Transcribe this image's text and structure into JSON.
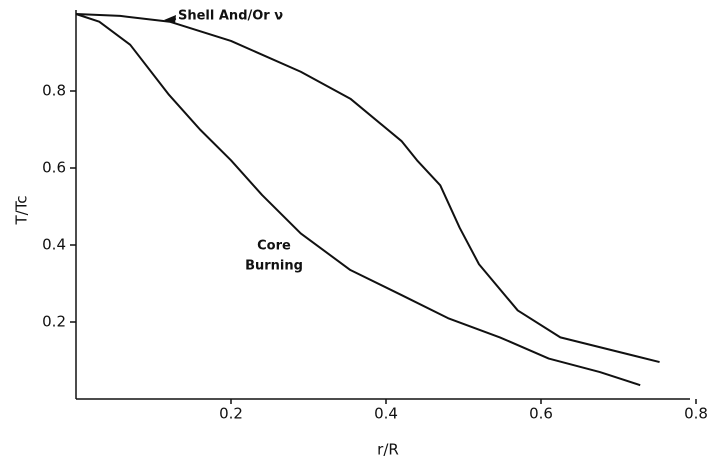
{
  "chart_data": {
    "type": "line",
    "xlabel": "r/R",
    "ylabel": "T/Tc",
    "annotations": [
      "Shell And/Or ν",
      "Core",
      "Burning"
    ],
    "xlim": [
      0,
      0.8
    ],
    "xticks": [
      0.2,
      0.4,
      0.6,
      0.8
    ],
    "ylim": [
      0,
      1.0
    ],
    "yticks": [
      0.2,
      0.4,
      0.6,
      0.8
    ],
    "grid": false,
    "series": [
      {
        "color": "#111111",
        "x": [
          0,
          0.057,
          0.121,
          0.2,
          0.29,
          0.354,
          0.42,
          0.44,
          0.47,
          0.495,
          0.52,
          0.57,
          0.625,
          0.753
        ],
        "values": [
          1.0,
          0.995,
          0.98,
          0.93,
          0.85,
          0.78,
          0.67,
          0.62,
          0.555,
          0.445,
          0.35,
          0.23,
          0.16,
          0.096
        ]
      },
      {
        "color": "#111111",
        "x": [
          0,
          0.03,
          0.07,
          0.12,
          0.16,
          0.2,
          0.24,
          0.29,
          0.354,
          0.42,
          0.48,
          0.547,
          0.61,
          0.676,
          0.728
        ],
        "values": [
          1.0,
          0.98,
          0.92,
          0.79,
          0.7,
          0.62,
          0.53,
          0.43,
          0.335,
          0.27,
          0.21,
          0.16,
          0.105,
          0.07,
          0.036
        ]
      }
    ]
  }
}
